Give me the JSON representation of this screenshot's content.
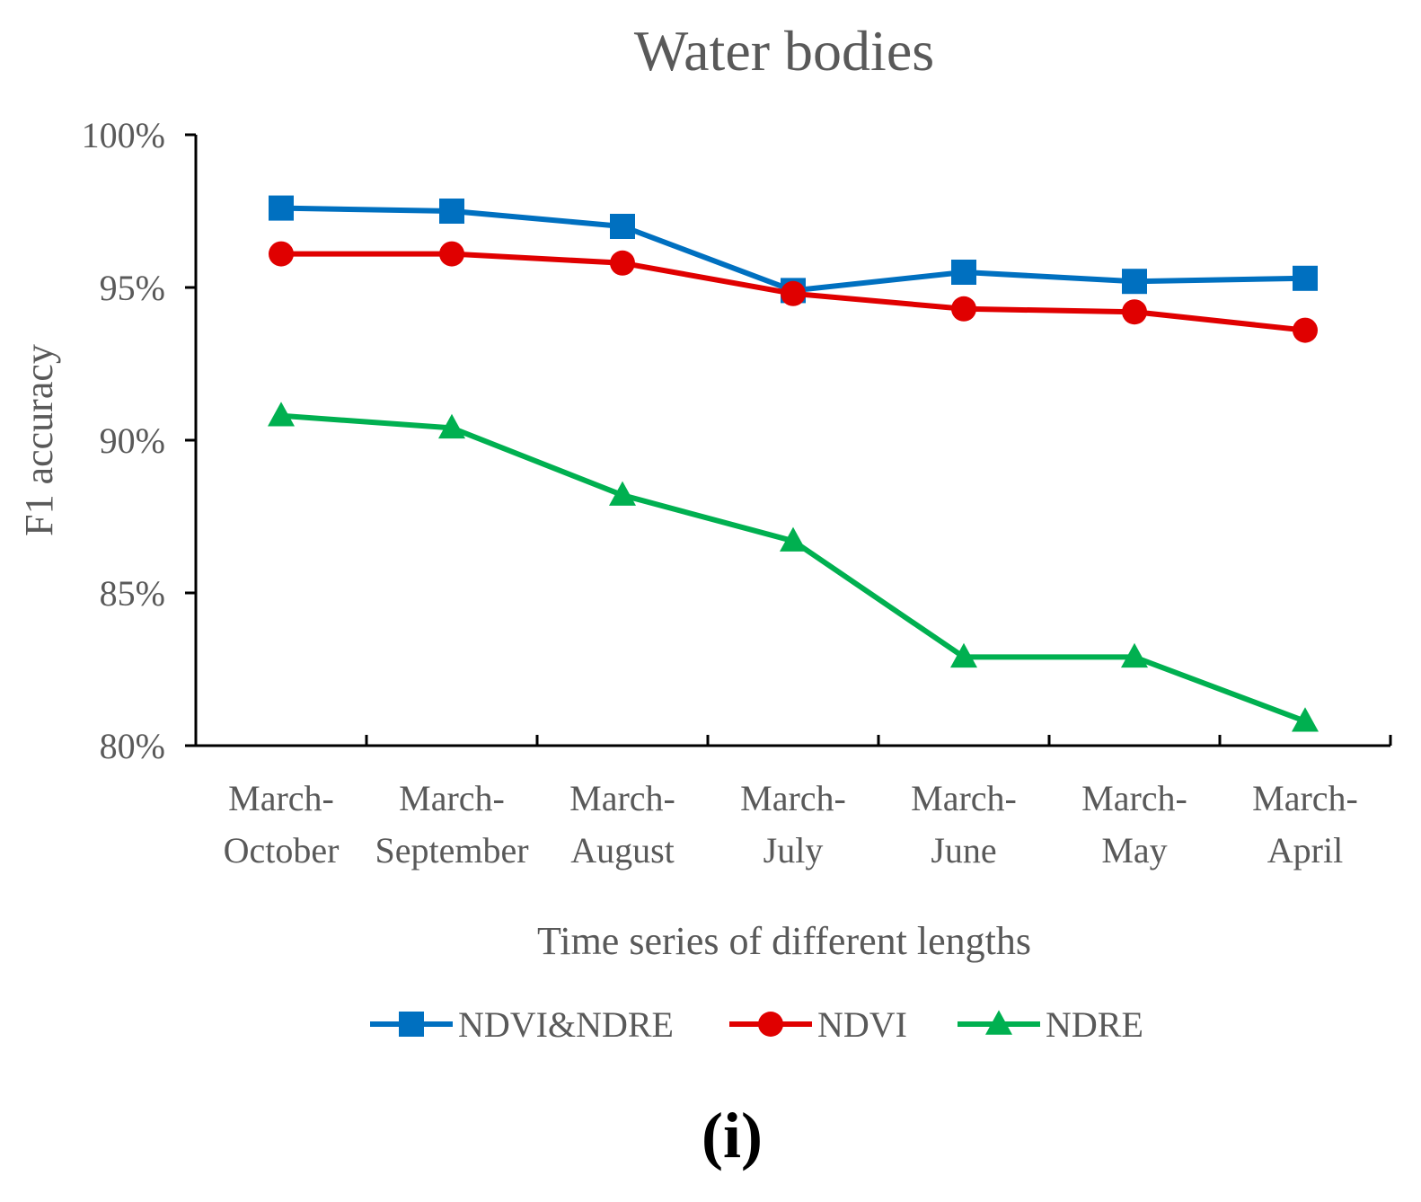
{
  "chart_data": {
    "type": "line",
    "title": "Water bodies",
    "xlabel": "Time series of different lengths",
    "ylabel": "F1 accuracy",
    "categories": [
      [
        "March-",
        "October"
      ],
      [
        "March-",
        "September"
      ],
      [
        "March-",
        "August"
      ],
      [
        "March-",
        "July"
      ],
      [
        "March-",
        "June"
      ],
      [
        "March-",
        "May"
      ],
      [
        "March-",
        "April"
      ]
    ],
    "yticks": [
      "80%",
      "85%",
      "90%",
      "95%",
      "100%"
    ],
    "ytick_values": [
      80,
      85,
      90,
      95,
      100
    ],
    "ylim": [
      80,
      100
    ],
    "grid": false,
    "legend_position": "bottom",
    "series": [
      {
        "name": "NDVI&NDRE",
        "color": "#0070C0",
        "marker": "square",
        "values": [
          97.6,
          97.5,
          97.0,
          94.9,
          95.5,
          95.2,
          95.3
        ]
      },
      {
        "name": "NDVI",
        "color": "#E00000",
        "marker": "circle",
        "values": [
          96.1,
          96.1,
          95.8,
          94.8,
          94.3,
          94.2,
          93.6
        ]
      },
      {
        "name": "NDRE",
        "color": "#00B050",
        "marker": "triangle",
        "values": [
          90.8,
          90.4,
          88.2,
          86.7,
          82.9,
          82.9,
          80.8
        ]
      }
    ]
  },
  "panel_label": "(i)"
}
